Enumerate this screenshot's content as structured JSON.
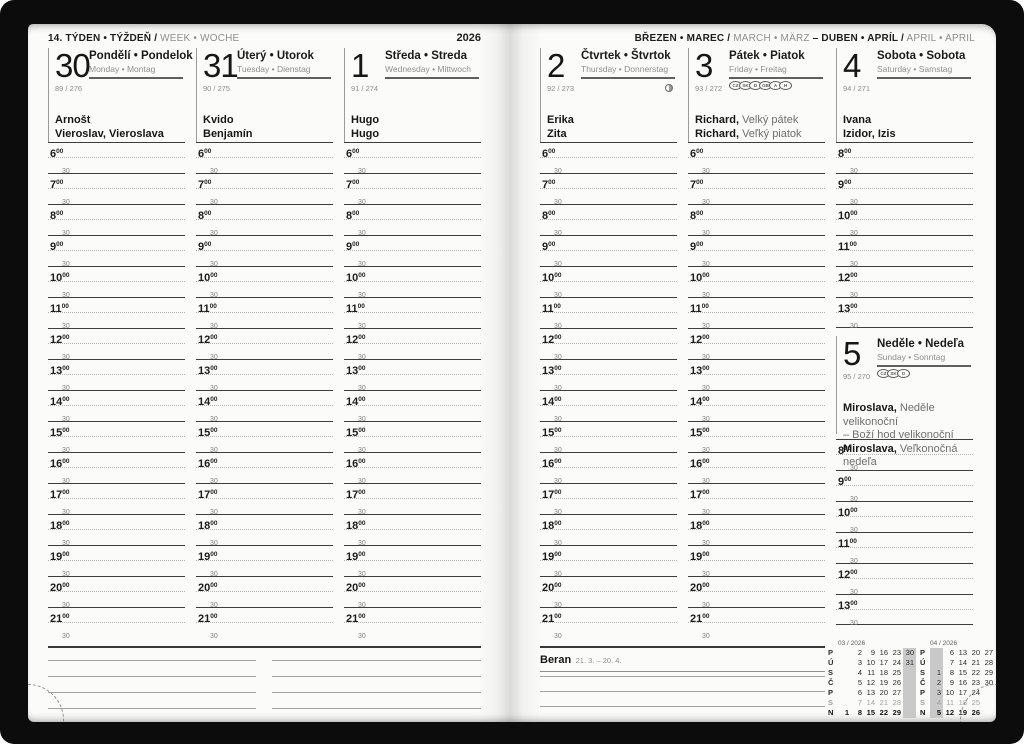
{
  "year": "2026",
  "left_header": {
    "bold": "14. TÝDEN • TÝŽDEŇ /",
    "light": "WEEK • WOCHE"
  },
  "right_header": {
    "seg1_bold": "BŘEZEN • MAREC /",
    "seg1_light": "MARCH • MÄRZ",
    "seg2_bold": "– DUBEN • APRÍL /",
    "seg2_light": "APRIL • APRIL"
  },
  "time_grid": {
    "sup": "00",
    "half": "30",
    "weekday_hours": [
      "6",
      "7",
      "8",
      "9",
      "10",
      "11",
      "12",
      "13",
      "14",
      "15",
      "16",
      "17",
      "18",
      "19",
      "20",
      "21"
    ],
    "weekend_hours": [
      "8",
      "9",
      "10",
      "11",
      "12",
      "13"
    ]
  },
  "days": [
    {
      "num": "30",
      "title": "Pondělí • Pondelok",
      "subtitle": "Monday • Montag",
      "doy": "89 / 276",
      "names": [
        {
          "bold": "Arnošt"
        },
        {
          "bold": "Vieroslav, Vieroslava"
        }
      ],
      "hours": "weekday"
    },
    {
      "num": "31",
      "title": "Úterý • Utorok",
      "subtitle": "Tuesday • Dienstag",
      "doy": "90 / 275",
      "names": [
        {
          "bold": "Kvido"
        },
        {
          "bold": "Benjamín"
        }
      ],
      "hours": "weekday"
    },
    {
      "num": "1",
      "title": "Středa • Streda",
      "subtitle": "Wednesday • Mittwoch",
      "doy": "91 / 274",
      "names": [
        {
          "bold": "Hugo"
        },
        {
          "bold": "Hugo"
        }
      ],
      "hours": "weekday"
    },
    {
      "num": "2",
      "title": "Čtvrtek • Štvrtok",
      "subtitle": "Thursday • Donnerstag",
      "doy": "92 / 273",
      "names": [
        {
          "bold": "Erika"
        },
        {
          "bold": "Zita"
        }
      ],
      "hours": "weekday",
      "moon": true
    },
    {
      "num": "3",
      "title": "Pátek • Piatok",
      "subtitle": "Friday • Freitag",
      "doy": "93 / 272",
      "badges": [
        "CZ",
        "SK",
        "D",
        "GB",
        "A",
        "H"
      ],
      "names": [
        {
          "bold": "Richard,",
          "light": "Velký pátek"
        },
        {
          "bold": "Richard,",
          "light": "Veľký piatok"
        }
      ],
      "hours": "weekday"
    },
    {
      "num": "4",
      "title": "Sobota • Sobota",
      "subtitle": "Saturday • Samstag",
      "doy": "94 / 271",
      "names": [
        {
          "bold": "Ivana"
        },
        {
          "bold": "Izidor, Izis"
        }
      ],
      "hours": "weekend"
    },
    {
      "num": "5",
      "title": "Neděle • Nedeľa",
      "subtitle": "Sunday • Sonntag",
      "doy": "95 / 270",
      "badges": [
        "CZ",
        "SK",
        "D"
      ],
      "names": [
        {
          "bold": "Miroslava,",
          "light": "Neděle velikonoční"
        },
        {
          "light": "– Boží hod velikonoční"
        },
        {
          "bold": "Miroslava,",
          "light": "Veľkonočná nedeľa"
        }
      ],
      "hours": "weekend"
    }
  ],
  "zodiac": {
    "name": "Beran",
    "range": "21. 3. – 20. 4."
  },
  "mini_calendars": [
    {
      "header": "03 / 2026",
      "day_labels": [
        "P",
        "Ú",
        "S",
        "Č",
        "P",
        "S",
        "N"
      ],
      "rows": [
        [
          "",
          "2",
          "9",
          "16",
          "23",
          "30"
        ],
        [
          "",
          "3",
          "10",
          "17",
          "24",
          "31"
        ],
        [
          "",
          "4",
          "11",
          "18",
          "25",
          ""
        ],
        [
          "",
          "5",
          "12",
          "19",
          "26",
          ""
        ],
        [
          "",
          "6",
          "13",
          "20",
          "27",
          ""
        ],
        [
          "",
          "7",
          "14",
          "21",
          "28",
          ""
        ],
        [
          "1",
          "8",
          "15",
          "22",
          "29",
          ""
        ]
      ],
      "highlight_col": 5
    },
    {
      "header": "04 / 2026",
      "day_labels": [
        "P",
        "Ú",
        "S",
        "Č",
        "P",
        "S",
        "N"
      ],
      "rows": [
        [
          "",
          "6",
          "13",
          "20",
          "27"
        ],
        [
          "",
          "7",
          "14",
          "21",
          "28"
        ],
        [
          "1",
          "8",
          "15",
          "22",
          "29"
        ],
        [
          "2",
          "9",
          "16",
          "23",
          "30"
        ],
        [
          "3",
          "10",
          "17",
          "24",
          ""
        ],
        [
          "4",
          "11",
          "18",
          "25",
          ""
        ],
        [
          "5",
          "12",
          "19",
          "26",
          ""
        ]
      ],
      "highlight_col": 0
    }
  ],
  "colors": {
    "cover": "#0c0c0c",
    "paper": "#fbfbf9",
    "highlight_band": "#c9c9c9",
    "ink": "#1c1c1c",
    "muted": "#8e8e8e"
  }
}
